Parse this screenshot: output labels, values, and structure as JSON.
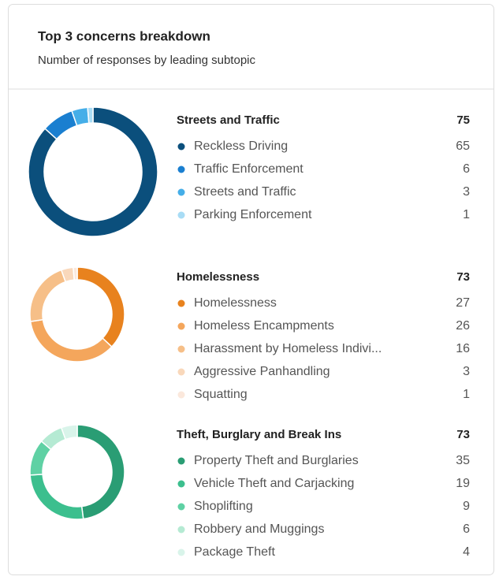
{
  "title": "Top 3 concerns breakdown",
  "subtitle": "Number of responses by leading subtopic",
  "chart_data": [
    {
      "type": "donut",
      "title": "Streets and Traffic",
      "total": 75,
      "categories": [
        "Reckless Driving",
        "Traffic Enforcement",
        "Streets and Traffic",
        "Parking Enforcement"
      ],
      "values": [
        65,
        6,
        3,
        1
      ],
      "colors": [
        "#0b4f7c",
        "#1a7fd0",
        "#45aee8",
        "#a8dcf5"
      ]
    },
    {
      "type": "donut",
      "title": "Homelessness",
      "total": 73,
      "categories": [
        "Homelessness",
        "Homeless Encampments",
        "Harassment by Homeless Indivi...",
        "Aggressive Panhandling",
        "Squatting"
      ],
      "values": [
        27,
        26,
        16,
        3,
        1
      ],
      "colors": [
        "#e8821e",
        "#f4a65c",
        "#f6bf88",
        "#f9d8bb",
        "#fbe8dc"
      ]
    },
    {
      "type": "donut",
      "title": "Theft, Burglary and Break Ins",
      "total": 73,
      "categories": [
        "Property Theft and Burglaries",
        "Vehicle Theft and Carjacking",
        "Shoplifting",
        "Robbery and Muggings",
        "Package Theft"
      ],
      "values": [
        35,
        19,
        9,
        6,
        4
      ],
      "colors": [
        "#2a9d74",
        "#3cbf8e",
        "#5fd1a4",
        "#b5ead3",
        "#d9f4ea"
      ]
    }
  ]
}
